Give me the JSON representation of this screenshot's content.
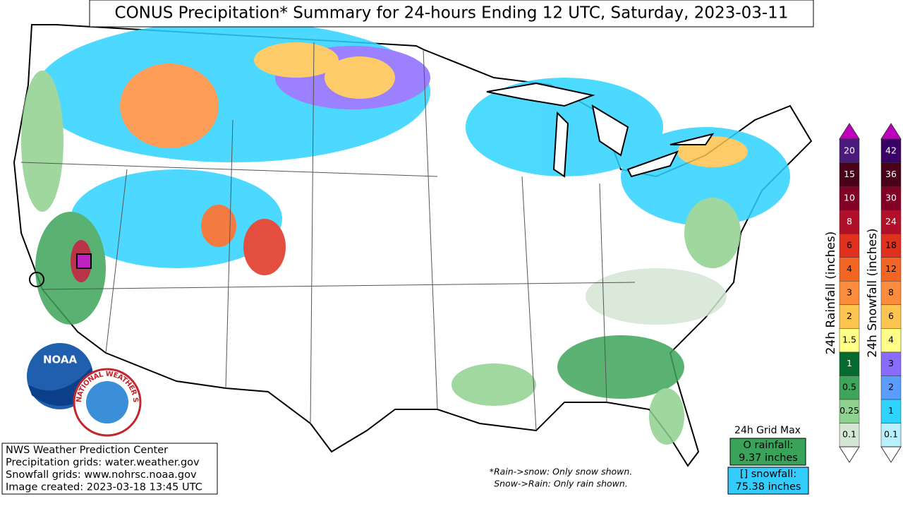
{
  "title": "CONUS Precipitation* Summary for 24-hours Ending 12 UTC, Saturday, 2023-03-11",
  "logos": {
    "noaa": "NOAA",
    "nws": "NATIONAL WEATHER SERVICE"
  },
  "rainfall_legend": {
    "label": "24h Rainfall (inches)",
    "ticks": [
      "0.1",
      "0.25",
      "0.5",
      "1",
      "1.5",
      "2",
      "3",
      "4",
      "6",
      "8",
      "10",
      "15",
      "20"
    ],
    "colors": [
      "#d4e6d4",
      "#8fd18f",
      "#3ea55a",
      "#056b2e",
      "#ffff88",
      "#fdc44f",
      "#fd8d3c",
      "#f26522",
      "#e0301e",
      "#b0102a",
      "#800026",
      "#4a0018",
      "#4b1a7a"
    ]
  },
  "snowfall_legend": {
    "label": "24h Snowfall (inches)",
    "ticks": [
      "0.1",
      "1",
      "2",
      "3",
      "4",
      "6",
      "8",
      "12",
      "18",
      "24",
      "30",
      "36",
      "42"
    ],
    "colors": [
      "#b8f0ff",
      "#2ed3ff",
      "#5b9dff",
      "#8a6bff",
      "#ffff88",
      "#fdc44f",
      "#fd8d3c",
      "#f26522",
      "#e0301e",
      "#b0102a",
      "#800026",
      "#4a0018",
      "#3a0066"
    ]
  },
  "grid_max": {
    "heading": "24h Grid Max",
    "rainfall": [
      "O rainfall:",
      "9.37 inches"
    ],
    "snowfall": [
      "[] snowfall:",
      "75.38 inches"
    ]
  },
  "footnote": [
    "*Rain->snow: Only snow shown.",
    "Snow->Rain: Only rain shown."
  ],
  "credits": [
    "NWS Weather Prediction Center",
    "Precipitation grids: water.weather.gov",
    "Snowfall grids: www.nohrsc.noaa.gov",
    "Image created: 2023-03-18 13:45 UTC"
  ]
}
